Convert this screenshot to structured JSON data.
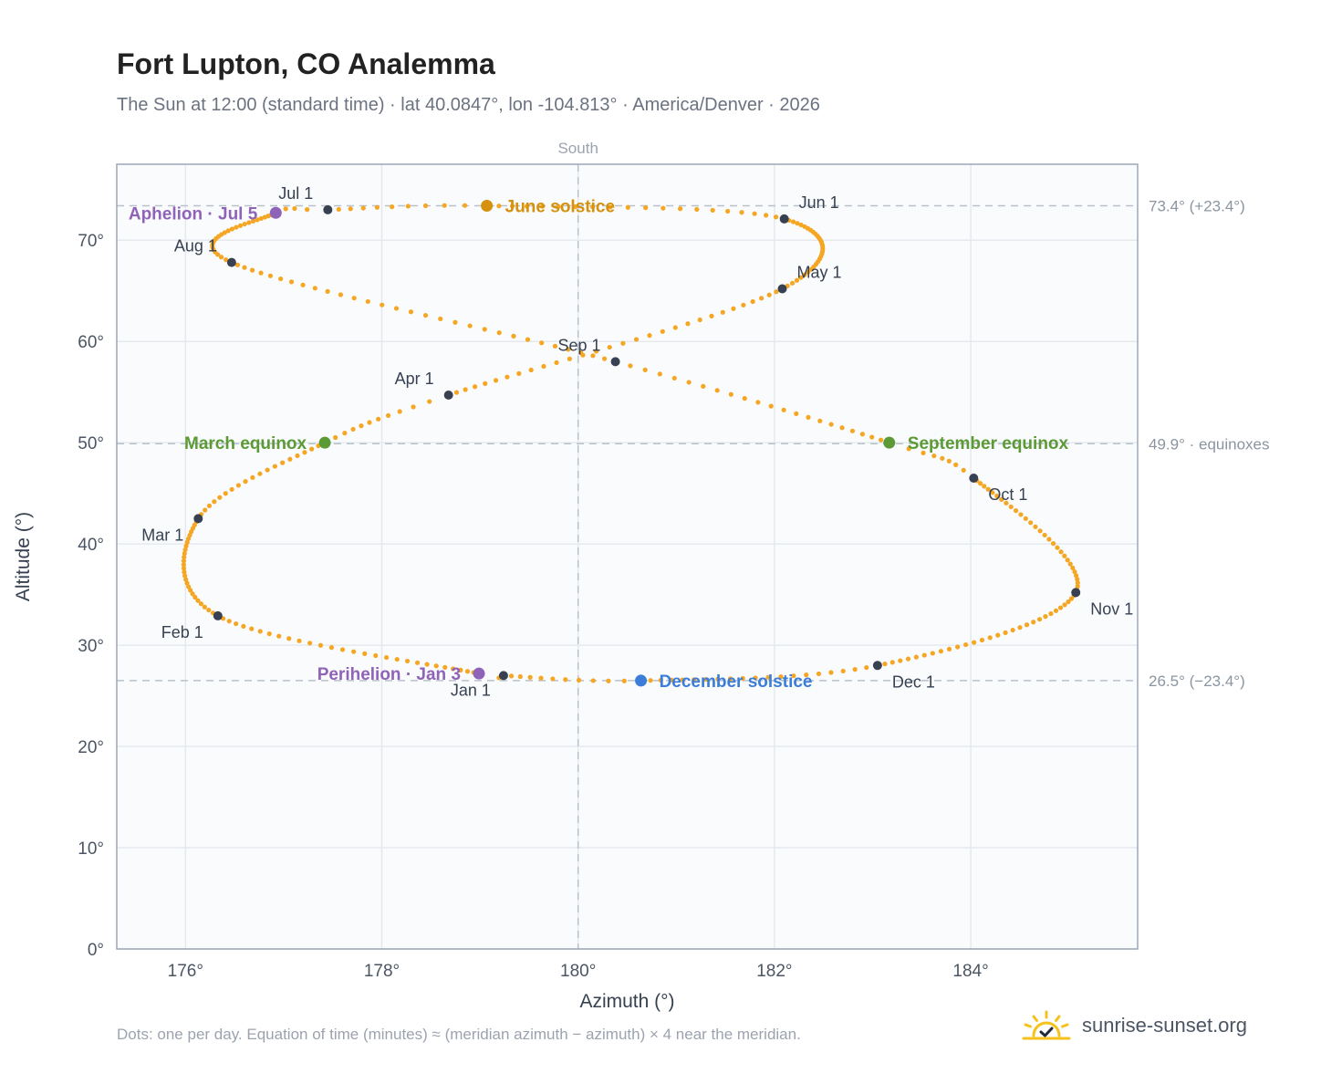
{
  "header": {
    "title": "Fort Lupton, CO Analemma",
    "subtitle": "The Sun at 12:00 (standard time) · lat 40.0847°, lon -104.813° · America/Denver · 2026"
  },
  "footer": {
    "note": "Dots: one per day. Equation of time (minutes) ≈ (meridian azimuth − azimuth) × 4 near the meridian.",
    "brand": "sunrise-sunset.org",
    "brand_icon": "sun-check-icon"
  },
  "colors": {
    "path": "#f5a623",
    "month_marker": "#374151",
    "solstice_june": "#d4920f",
    "solstice_december": "#3b7dd8",
    "equinox": "#5b9a35",
    "apsis": "#8e63b8",
    "reference_line": "#b8c2cc",
    "grid": "#e5e9ee",
    "plot_bg": "#fafbfd",
    "frame": "#9ca8b6"
  },
  "chart_data": {
    "type": "scatter",
    "xlabel": "Azimuth (°)",
    "ylabel": "Altitude (°)",
    "xlim": [
      175.3,
      185.7
    ],
    "ylim": [
      0,
      77.5
    ],
    "xticks": [
      176,
      178,
      180,
      182,
      184
    ],
    "yticks": [
      0,
      10,
      20,
      30,
      40,
      50,
      60,
      70
    ],
    "xtick_labels": [
      "176°",
      "178°",
      "180°",
      "182°",
      "184°"
    ],
    "ytick_labels": [
      "0°",
      "10°",
      "20°",
      "30°",
      "40°",
      "50°",
      "60°",
      "70°"
    ],
    "grid": true,
    "meridian": {
      "azimuth": 180,
      "label": "South"
    },
    "reference_lines": [
      {
        "altitude": 73.4,
        "label": "73.4° (+23.4°)"
      },
      {
        "altitude": 49.9,
        "label": "49.9° · equinoxes"
      },
      {
        "altitude": 26.5,
        "label": "26.5° (−23.4°)"
      }
    ],
    "month_markers": [
      {
        "label": "Jan 1",
        "azimuth": 179.24,
        "altitude": 27.0
      },
      {
        "label": "Feb 1",
        "azimuth": 176.33,
        "altitude": 32.9
      },
      {
        "label": "Mar 1",
        "azimuth": 176.13,
        "altitude": 42.5
      },
      {
        "label": "Apr 1",
        "azimuth": 178.68,
        "altitude": 54.7
      },
      {
        "label": "May 1",
        "azimuth": 182.08,
        "altitude": 65.2
      },
      {
        "label": "Jun 1",
        "azimuth": 182.1,
        "altitude": 72.1
      },
      {
        "label": "Jul 1",
        "azimuth": 177.45,
        "altitude": 73.0
      },
      {
        "label": "Aug 1",
        "azimuth": 176.47,
        "altitude": 67.8
      },
      {
        "label": "Sep 1",
        "azimuth": 180.38,
        "altitude": 58.0
      },
      {
        "label": "Oct 1",
        "azimuth": 184.03,
        "altitude": 46.5
      },
      {
        "label": "Nov 1",
        "azimuth": 185.07,
        "altitude": 35.2
      },
      {
        "label": "Dec 1",
        "azimuth": 183.05,
        "altitude": 28.0
      }
    ],
    "events": [
      {
        "label": "June solstice",
        "azimuth": 179.07,
        "altitude": 73.4,
        "kind": "solstice_june"
      },
      {
        "label": "December solstice",
        "azimuth": 180.64,
        "altitude": 26.5,
        "kind": "solstice_december"
      },
      {
        "label": "March equinox",
        "azimuth": 177.42,
        "altitude": 50.0,
        "kind": "equinox"
      },
      {
        "label": "September equinox",
        "azimuth": 183.17,
        "altitude": 50.0,
        "kind": "equinox"
      },
      {
        "label": "Aphelion · Jul 5",
        "azimuth": 176.92,
        "altitude": 72.7,
        "kind": "apsis"
      },
      {
        "label": "Perihelion · Jan 3",
        "azimuth": 178.99,
        "altitude": 27.2,
        "kind": "apsis"
      }
    ]
  }
}
